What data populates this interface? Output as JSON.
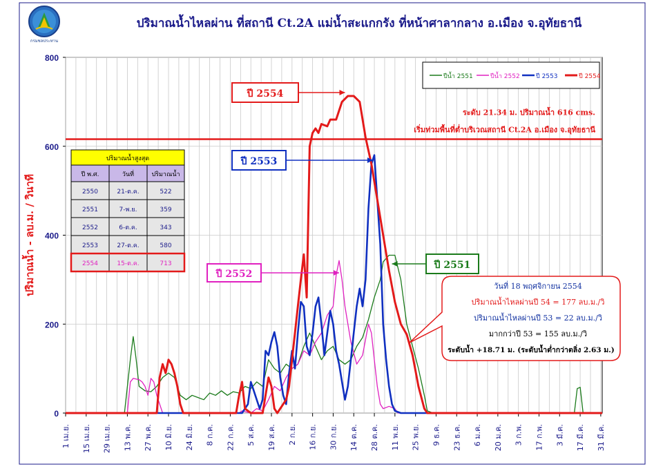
{
  "logo": {
    "text": "กรมชลประทาน",
    "icon": "royal-irrigation-emblem-icon"
  },
  "chart_data": {
    "type": "line",
    "title": "ปริมาณน้ำไหลผ่าน ที่สถานี Ct.2A แม่น้ำสะแกกรัง  ที่หน้าศาลากลาง  อ.เมือง  จ.อุทัยธานี",
    "ylabel": "ปริมาณน้ำ - ลบ.ม. / วินาที",
    "ylim": [
      0,
      800
    ],
    "yticks": [
      0,
      200,
      400,
      600,
      800
    ],
    "xlim": [
      0,
      365
    ],
    "grid": true,
    "legend_position": "top-right",
    "xticks": [
      {
        "d": 0,
        "label": "1 เม.ย."
      },
      {
        "d": 14,
        "label": "15 เม.ย."
      },
      {
        "d": 28,
        "label": "29 เม.ย."
      },
      {
        "d": 42,
        "label": "13 พ.ค."
      },
      {
        "d": 56,
        "label": "27 พ.ค."
      },
      {
        "d": 70,
        "label": "10 มิ.ย."
      },
      {
        "d": 84,
        "label": "24 มิ.ย."
      },
      {
        "d": 98,
        "label": "8 ก.ค."
      },
      {
        "d": 112,
        "label": "22 ก.ค."
      },
      {
        "d": 126,
        "label": "5 ส.ค."
      },
      {
        "d": 140,
        "label": "19 ส.ค."
      },
      {
        "d": 154,
        "label": "2 ก.ย."
      },
      {
        "d": 168,
        "label": "16 ก.ย."
      },
      {
        "d": 182,
        "label": "30 ก.ย."
      },
      {
        "d": 196,
        "label": "14 ต.ค."
      },
      {
        "d": 210,
        "label": "28 ต.ค."
      },
      {
        "d": 224,
        "label": "11 พ.ย."
      },
      {
        "d": 238,
        "label": "25 พ.ย."
      },
      {
        "d": 252,
        "label": "9 ธ.ค."
      },
      {
        "d": 266,
        "label": "23 ธ.ค."
      },
      {
        "d": 280,
        "label": "6 ม.ค."
      },
      {
        "d": 294,
        "label": "20 ม.ค."
      },
      {
        "d": 308,
        "label": "3 ก.พ."
      },
      {
        "d": 322,
        "label": "17 ก.พ."
      },
      {
        "d": 336,
        "label": "3 มี.ค."
      },
      {
        "d": 350,
        "label": "17 มี.ค."
      },
      {
        "d": 364,
        "label": "31 มี.ค."
      }
    ],
    "threshold": {
      "value": 616,
      "label1": "ระดับ 21.34 ม. ปริมาณน้ำ 616 cms.",
      "label2": "เริ่มท่วมพื้นที่ต่ำบริเวณสถานี Ct.2A อ.เมือง จ.อุทัยธานี",
      "color": "#e31a1a"
    },
    "series": [
      {
        "name": "ปีน้ำ 2551",
        "color": "#1a7a1a",
        "width": 1.3,
        "points": [
          [
            0,
            0
          ],
          [
            40,
            0
          ],
          [
            44,
            120
          ],
          [
            46,
            172
          ],
          [
            48,
            120
          ],
          [
            50,
            60
          ],
          [
            54,
            50
          ],
          [
            58,
            48
          ],
          [
            62,
            60
          ],
          [
            66,
            80
          ],
          [
            70,
            90
          ],
          [
            74,
            80
          ],
          [
            78,
            40
          ],
          [
            82,
            30
          ],
          [
            86,
            40
          ],
          [
            90,
            35
          ],
          [
            94,
            30
          ],
          [
            98,
            45
          ],
          [
            102,
            40
          ],
          [
            106,
            50
          ],
          [
            110,
            40
          ],
          [
            114,
            48
          ],
          [
            118,
            45
          ],
          [
            122,
            60
          ],
          [
            126,
            55
          ],
          [
            130,
            70
          ],
          [
            134,
            60
          ],
          [
            138,
            120
          ],
          [
            142,
            100
          ],
          [
            146,
            90
          ],
          [
            150,
            110
          ],
          [
            154,
            100
          ],
          [
            158,
            110
          ],
          [
            162,
            150
          ],
          [
            166,
            180
          ],
          [
            170,
            150
          ],
          [
            174,
            120
          ],
          [
            178,
            140
          ],
          [
            182,
            150
          ],
          [
            186,
            120
          ],
          [
            190,
            110
          ],
          [
            194,
            120
          ],
          [
            198,
            150
          ],
          [
            202,
            170
          ],
          [
            206,
            210
          ],
          [
            210,
            260
          ],
          [
            214,
            300
          ],
          [
            216,
            340
          ],
          [
            220,
            355
          ],
          [
            224,
            355
          ],
          [
            228,
            300
          ],
          [
            232,
            200
          ],
          [
            236,
            150
          ],
          [
            240,
            100
          ],
          [
            244,
            40
          ],
          [
            246,
            5
          ],
          [
            250,
            0
          ],
          [
            346,
            0
          ],
          [
            348,
            55
          ],
          [
            350,
            58
          ],
          [
            352,
            0
          ],
          [
            365,
            0
          ]
        ]
      },
      {
        "name": "ปีน้ำ 2552",
        "color": "#e020c0",
        "width": 1.3,
        "points": [
          [
            0,
            0
          ],
          [
            42,
            0
          ],
          [
            44,
            70
          ],
          [
            46,
            78
          ],
          [
            50,
            75
          ],
          [
            52,
            70
          ],
          [
            54,
            60
          ],
          [
            56,
            40
          ],
          [
            58,
            78
          ],
          [
            60,
            70
          ],
          [
            62,
            40
          ],
          [
            64,
            20
          ],
          [
            66,
            0
          ],
          [
            118,
            0
          ],
          [
            120,
            5
          ],
          [
            126,
            0
          ],
          [
            130,
            10
          ],
          [
            134,
            5
          ],
          [
            138,
            30
          ],
          [
            142,
            60
          ],
          [
            146,
            50
          ],
          [
            150,
            80
          ],
          [
            154,
            100
          ],
          [
            158,
            110
          ],
          [
            162,
            140
          ],
          [
            166,
            130
          ],
          [
            170,
            160
          ],
          [
            174,
            180
          ],
          [
            178,
            220
          ],
          [
            182,
            240
          ],
          [
            184,
            310
          ],
          [
            186,
            343
          ],
          [
            188,
            300
          ],
          [
            190,
            240
          ],
          [
            194,
            160
          ],
          [
            198,
            110
          ],
          [
            202,
            130
          ],
          [
            206,
            200
          ],
          [
            208,
            180
          ],
          [
            210,
            120
          ],
          [
            212,
            60
          ],
          [
            214,
            20
          ],
          [
            216,
            10
          ],
          [
            220,
            15
          ],
          [
            224,
            10
          ],
          [
            226,
            0
          ],
          [
            365,
            0
          ]
        ]
      },
      {
        "name": "ปี 2553",
        "color": "#1030c0",
        "width": 2.6,
        "points": [
          [
            0,
            0
          ],
          [
            120,
            0
          ],
          [
            124,
            20
          ],
          [
            126,
            70
          ],
          [
            128,
            50
          ],
          [
            132,
            10
          ],
          [
            134,
            30
          ],
          [
            136,
            140
          ],
          [
            138,
            130
          ],
          [
            140,
            160
          ],
          [
            142,
            182
          ],
          [
            144,
            150
          ],
          [
            146,
            80
          ],
          [
            148,
            40
          ],
          [
            150,
            20
          ],
          [
            152,
            90
          ],
          [
            154,
            140
          ],
          [
            156,
            100
          ],
          [
            158,
            180
          ],
          [
            160,
            250
          ],
          [
            162,
            240
          ],
          [
            164,
            150
          ],
          [
            166,
            130
          ],
          [
            168,
            180
          ],
          [
            170,
            240
          ],
          [
            172,
            260
          ],
          [
            174,
            200
          ],
          [
            176,
            130
          ],
          [
            178,
            180
          ],
          [
            180,
            230
          ],
          [
            182,
            200
          ],
          [
            184,
            140
          ],
          [
            186,
            110
          ],
          [
            188,
            70
          ],
          [
            190,
            30
          ],
          [
            192,
            60
          ],
          [
            194,
            120
          ],
          [
            196,
            180
          ],
          [
            198,
            240
          ],
          [
            200,
            280
          ],
          [
            202,
            240
          ],
          [
            204,
            300
          ],
          [
            206,
            460
          ],
          [
            208,
            560
          ],
          [
            210,
            580
          ],
          [
            212,
            480
          ],
          [
            214,
            380
          ],
          [
            216,
            200
          ],
          [
            218,
            120
          ],
          [
            220,
            60
          ],
          [
            222,
            20
          ],
          [
            224,
            5
          ],
          [
            228,
            0
          ],
          [
            365,
            0
          ]
        ]
      },
      {
        "name": "ปี 2554",
        "color": "#e31a1a",
        "width": 3,
        "points": [
          [
            0,
            0
          ],
          [
            62,
            0
          ],
          [
            64,
            80
          ],
          [
            66,
            110
          ],
          [
            68,
            90
          ],
          [
            70,
            120
          ],
          [
            72,
            110
          ],
          [
            74,
            90
          ],
          [
            76,
            60
          ],
          [
            78,
            20
          ],
          [
            80,
            0
          ],
          [
            116,
            0
          ],
          [
            118,
            40
          ],
          [
            120,
            70
          ],
          [
            122,
            10
          ],
          [
            126,
            0
          ],
          [
            134,
            0
          ],
          [
            136,
            40
          ],
          [
            138,
            80
          ],
          [
            140,
            60
          ],
          [
            142,
            10
          ],
          [
            144,
            0
          ],
          [
            150,
            30
          ],
          [
            152,
            60
          ],
          [
            154,
            120
          ],
          [
            156,
            180
          ],
          [
            158,
            240
          ],
          [
            160,
            300
          ],
          [
            162,
            357
          ],
          [
            164,
            260
          ],
          [
            166,
            600
          ],
          [
            168,
            630
          ],
          [
            170,
            640
          ],
          [
            172,
            630
          ],
          [
            174,
            650
          ],
          [
            178,
            645
          ],
          [
            180,
            660
          ],
          [
            184,
            660
          ],
          [
            188,
            700
          ],
          [
            192,
            713
          ],
          [
            196,
            713
          ],
          [
            200,
            700
          ],
          [
            204,
            620
          ],
          [
            208,
            560
          ],
          [
            212,
            480
          ],
          [
            216,
            400
          ],
          [
            220,
            320
          ],
          [
            224,
            250
          ],
          [
            228,
            200
          ],
          [
            232,
            177
          ],
          [
            236,
            130
          ],
          [
            240,
            60
          ],
          [
            244,
            10
          ],
          [
            246,
            0
          ],
          [
            365,
            0
          ]
        ]
      }
    ],
    "annotations": [
      {
        "label": "ปี 2554",
        "color": "#e31a1a",
        "target_d": 190,
        "target_v": 713
      },
      {
        "label": "ปี 2553",
        "color": "#1030c0",
        "target_d": 209,
        "target_v": 572
      },
      {
        "label": "ปี 2552",
        "color": "#e020c0",
        "target_d": 186,
        "target_v": 318
      },
      {
        "label": "ปี 2551",
        "color": "#1a7a1a",
        "target_d": 222,
        "target_v": 325
      }
    ],
    "table": {
      "title": "ปริมาณน้ำสูงสุด",
      "headers": [
        "ปี พ.ศ.",
        "วันที่",
        "ปริมาณน้ำ"
      ],
      "rows": [
        [
          "2550",
          "21-ต.ค.",
          "522"
        ],
        [
          "2551",
          "7-พ.ย.",
          "359"
        ],
        [
          "2552",
          "6-ต.ค.",
          "343"
        ],
        [
          "2553",
          "27-ต.ค.",
          "580"
        ],
        [
          "2554",
          "15-ต.ค.",
          "713"
        ]
      ],
      "highlight_row": 4
    },
    "callout": {
      "lines": [
        {
          "text": "วันที่ 18  พฤศจิกายน   2554",
          "color": "#1030a0"
        },
        {
          "text": "ปริมาณน้ำไหลผ่านปี 54   =  177   ลบ.ม./วิ",
          "color": "#e31a1a"
        },
        {
          "text": "ปริมาณน้ำไหลผ่านปี 53  =  22     ลบ.ม./วิ",
          "color": "#1030a0"
        },
        {
          "text": "มากกว่าปี 53 =  155  ลบ.ม./วิ",
          "color": "#000000"
        },
        {
          "text": "ระดับน้ำ +18.71 ม. (ระดับน้ำต่ำกว่าตลิ่ง 2.63 ม.)",
          "color": "#000000"
        }
      ],
      "pointer_d": 232,
      "pointer_v": 177
    }
  }
}
